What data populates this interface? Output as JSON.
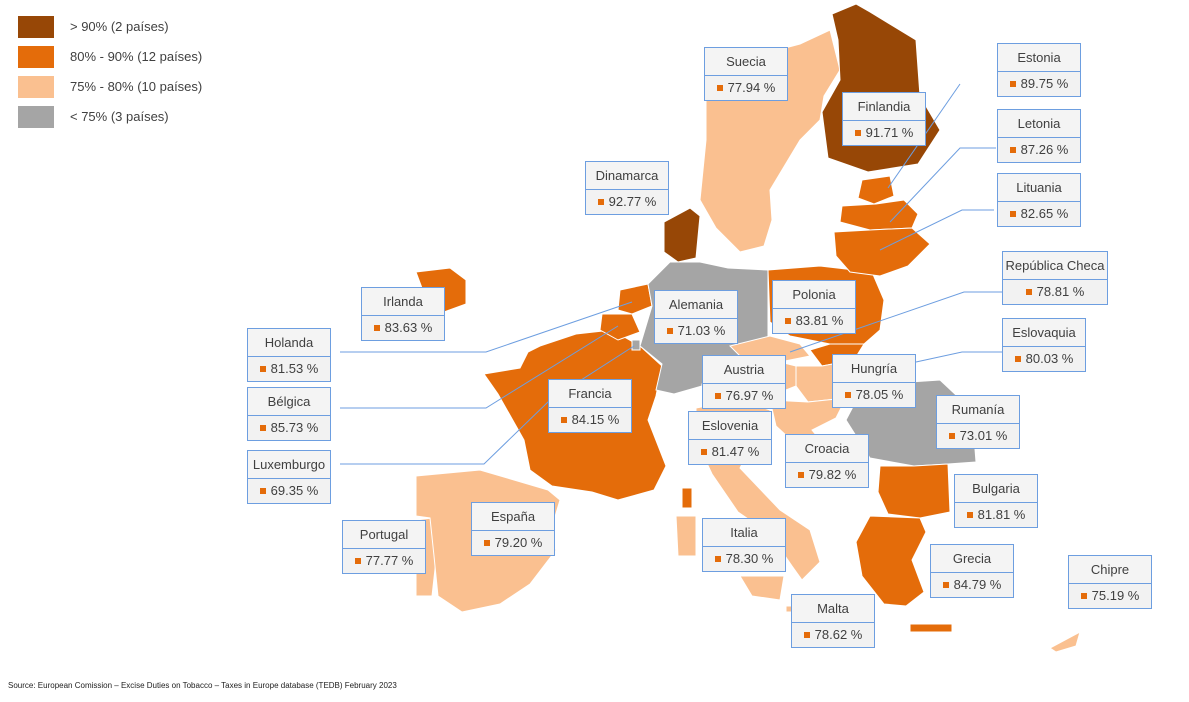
{
  "legend": {
    "items": [
      {
        "label": "> 90% (2 países)",
        "color": "#974706"
      },
      {
        "label": "80% - 90% (12 países)",
        "color": "#e46c0a"
      },
      {
        "label": "75% - 80% (10 países)",
        "color": "#fac090"
      },
      {
        "label": "< 75% (3 países)",
        "color": "#a5a5a5"
      }
    ]
  },
  "countries": [
    {
      "name": "Suecia",
      "value": "77.94 %",
      "color": "#fac090"
    },
    {
      "name": "Finlandia",
      "value": "91.71 %",
      "color": "#974706"
    },
    {
      "name": "Estonia",
      "value": "89.75 %",
      "color": "#e46c0a"
    },
    {
      "name": "Letonia",
      "value": "87.26 %",
      "color": "#e46c0a"
    },
    {
      "name": "Lituania",
      "value": "82.65 %",
      "color": "#e46c0a"
    },
    {
      "name": "Dinamarca",
      "value": "92.77 %",
      "color": "#974706"
    },
    {
      "name": "Irlanda",
      "value": "83.63 %",
      "color": "#e46c0a"
    },
    {
      "name": "Alemania",
      "value": "71.03 %",
      "color": "#a5a5a5"
    },
    {
      "name": "Polonia",
      "value": "83.81 %",
      "color": "#e46c0a"
    },
    {
      "name": "República Checa",
      "value": "78.81 %",
      "color": "#fac090"
    },
    {
      "name": "Eslovaquia",
      "value": "80.03 %",
      "color": "#e46c0a"
    },
    {
      "name": "Holanda",
      "value": "81.53 %",
      "color": "#e46c0a"
    },
    {
      "name": "Austria",
      "value": "76.97 %",
      "color": "#fac090"
    },
    {
      "name": "Hungría",
      "value": "78.05 %",
      "color": "#fac090"
    },
    {
      "name": "Bélgica",
      "value": "85.73 %",
      "color": "#e46c0a"
    },
    {
      "name": "Francia",
      "value": "84.15 %",
      "color": "#e46c0a"
    },
    {
      "name": "Rumanía",
      "value": "73.01 %",
      "color": "#a5a5a5"
    },
    {
      "name": "Eslovenia",
      "value": "81.47 %",
      "color": "#e46c0a"
    },
    {
      "name": "Croacia",
      "value": "79.82 %",
      "color": "#fac090"
    },
    {
      "name": "Luxemburgo",
      "value": "69.35 %",
      "color": "#a5a5a5"
    },
    {
      "name": "Bulgaria",
      "value": "81.81 %",
      "color": "#e46c0a"
    },
    {
      "name": "España",
      "value": "79.20 %",
      "color": "#fac090"
    },
    {
      "name": "Portugal",
      "value": "77.77 %",
      "color": "#fac090"
    },
    {
      "name": "Italia",
      "value": "78.30 %",
      "color": "#fac090"
    },
    {
      "name": "Grecia",
      "value": "84.79 %",
      "color": "#e46c0a"
    },
    {
      "name": "Chipre",
      "value": "75.19 %",
      "color": "#fac090"
    },
    {
      "name": "Malta",
      "value": "78.62 %",
      "color": "#fac090"
    }
  ],
  "source": "Source: European Comission – Excise Duties on Tobacco – Taxes in Europe database (TEDB) February 2023"
}
